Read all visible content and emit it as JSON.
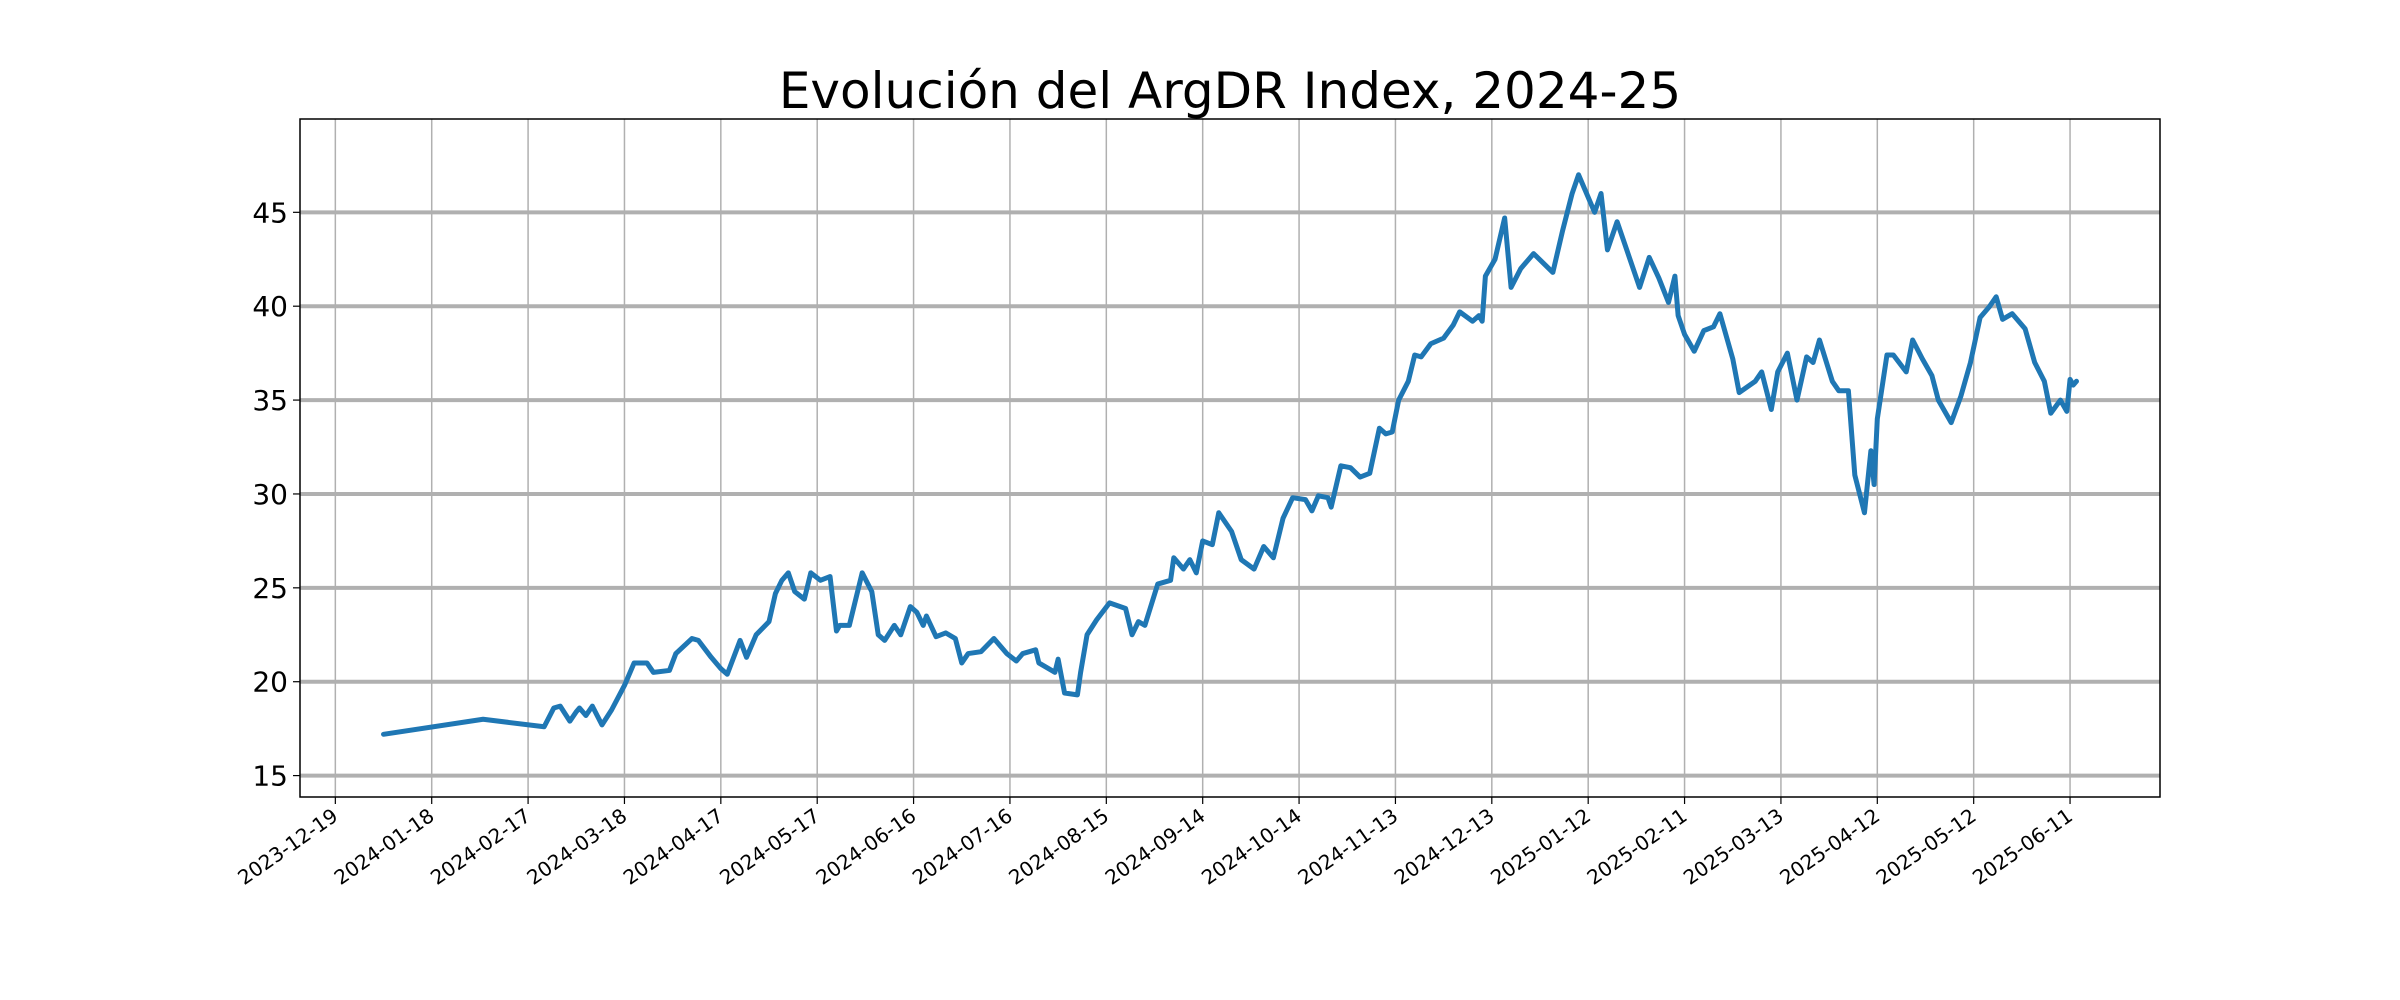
{
  "chart_data": {
    "type": "line",
    "title": "Evolución del ArgDR Index, 2024-25",
    "color": "#1f77b4",
    "grid": true,
    "x": [
      "2024-01-03",
      "2024-02-03",
      "2024-02-22",
      "2024-02-25",
      "2024-02-27",
      "2024-03-01",
      "2024-03-03",
      "2024-03-04",
      "2024-03-06",
      "2024-03-08",
      "2024-03-11",
      "2024-03-14",
      "2024-03-18",
      "2024-03-21",
      "2024-03-25",
      "2024-03-27",
      "2024-04-01",
      "2024-04-03",
      "2024-04-08",
      "2024-04-10",
      "2024-04-14",
      "2024-04-17",
      "2024-04-19",
      "2024-04-23",
      "2024-04-25",
      "2024-04-28",
      "2024-05-02",
      "2024-05-04",
      "2024-05-06",
      "2024-05-08",
      "2024-05-10",
      "2024-05-13",
      "2024-05-15",
      "2024-05-18",
      "2024-05-21",
      "2024-05-23",
      "2024-05-24",
      "2024-05-27",
      "2024-05-31",
      "2024-06-03",
      "2024-06-05",
      "2024-06-07",
      "2024-06-10",
      "2024-06-12",
      "2024-06-15",
      "2024-06-17",
      "2024-06-19",
      "2024-06-20",
      "2024-06-23",
      "2024-06-26",
      "2024-06-29",
      "2024-07-01",
      "2024-07-03",
      "2024-07-07",
      "2024-07-11",
      "2024-07-15",
      "2024-07-18",
      "2024-07-20",
      "2024-07-24",
      "2024-07-25",
      "2024-07-30",
      "2024-07-31",
      "2024-08-02",
      "2024-08-06",
      "2024-08-07",
      "2024-08-09",
      "2024-08-12",
      "2024-08-16",
      "2024-08-21",
      "2024-08-23",
      "2024-08-25",
      "2024-08-27",
      "2024-08-31",
      "2024-09-04",
      "2024-09-05",
      "2024-09-08",
      "2024-09-10",
      "2024-09-12",
      "2024-09-14",
      "2024-09-17",
      "2024-09-19",
      "2024-09-23",
      "2024-09-26",
      "2024-09-30",
      "2024-10-03",
      "2024-10-06",
      "2024-10-09",
      "2024-10-12",
      "2024-10-16",
      "2024-10-18",
      "2024-10-20",
      "2024-10-23",
      "2024-10-24",
      "2024-10-27",
      "2024-10-30",
      "2024-11-02",
      "2024-11-05",
      "2024-11-08",
      "2024-11-10",
      "2024-11-12",
      "2024-11-14",
      "2024-11-17",
      "2024-11-19",
      "2024-11-21",
      "2024-11-24",
      "2024-11-28",
      "2024-12-01",
      "2024-12-03",
      "2024-12-07",
      "2024-12-09",
      "2024-12-10",
      "2024-12-11",
      "2024-12-14",
      "2024-12-17",
      "2024-12-19",
      "2024-12-22",
      "2024-12-26",
      "2025-01-01",
      "2025-01-04",
      "2025-01-07",
      "2025-01-09",
      "2025-01-11",
      "2025-01-14",
      "2025-01-16",
      "2025-01-18",
      "2025-01-21",
      "2025-01-24",
      "2025-01-28",
      "2025-01-31",
      "2025-02-03",
      "2025-02-06",
      "2025-02-08",
      "2025-02-09",
      "2025-02-11",
      "2025-02-14",
      "2025-02-17",
      "2025-02-20",
      "2025-02-22",
      "2025-02-26",
      "2025-02-28",
      "2025-03-05",
      "2025-03-07",
      "2025-03-10",
      "2025-03-12",
      "2025-03-15",
      "2025-03-18",
      "2025-03-21",
      "2025-03-23",
      "2025-03-25",
      "2025-03-29",
      "2025-03-31",
      "2025-04-03",
      "2025-04-05",
      "2025-04-08",
      "2025-04-10",
      "2025-04-11",
      "2025-04-12",
      "2025-04-15",
      "2025-04-17",
      "2025-04-21",
      "2025-04-23",
      "2025-04-26",
      "2025-04-29",
      "2025-05-01",
      "2025-05-05",
      "2025-05-08",
      "2025-05-11",
      "2025-05-14",
      "2025-05-17",
      "2025-05-19",
      "2025-05-21",
      "2025-05-24",
      "2025-05-28",
      "2025-05-31",
      "2025-06-03",
      "2025-06-05",
      "2025-06-08",
      "2025-06-10",
      "2025-06-11",
      "2025-06-12",
      "2025-06-13"
    ],
    "values": [
      17.2,
      18.0,
      17.6,
      18.6,
      18.7,
      17.9,
      18.4,
      18.6,
      18.2,
      18.7,
      17.7,
      18.5,
      19.8,
      21.0,
      21.0,
      20.5,
      20.6,
      21.5,
      22.3,
      22.2,
      21.3,
      20.7,
      20.4,
      22.2,
      21.3,
      22.5,
      23.2,
      24.7,
      25.4,
      25.8,
      24.8,
      24.4,
      25.8,
      25.4,
      25.6,
      22.7,
      23.0,
      23.0,
      25.8,
      24.8,
      22.5,
      22.2,
      23.0,
      22.5,
      24.0,
      23.7,
      23.0,
      23.5,
      22.4,
      22.6,
      22.3,
      21.0,
      21.5,
      21.6,
      22.3,
      21.5,
      21.1,
      21.5,
      21.7,
      21.0,
      20.5,
      21.2,
      19.4,
      19.3,
      20.5,
      22.5,
      23.3,
      24.2,
      23.9,
      22.5,
      23.2,
      23.0,
      25.2,
      25.4,
      26.6,
      26.0,
      26.5,
      25.8,
      27.5,
      27.3,
      29.0,
      28.0,
      26.5,
      26.0,
      27.2,
      26.6,
      28.7,
      29.8,
      29.7,
      29.1,
      29.9,
      29.8,
      29.3,
      31.5,
      31.4,
      30.9,
      31.1,
      33.5,
      33.2,
      33.3,
      35.0,
      36.0,
      37.4,
      37.3,
      38.0,
      38.3,
      39.0,
      39.7,
      39.2,
      39.5,
      39.2,
      41.6,
      42.5,
      44.7,
      41.0,
      42.0,
      42.8,
      41.8,
      44.0,
      46.0,
      47.0,
      46.2,
      45.0,
      46.0,
      43.0,
      44.5,
      43.0,
      41.0,
      42.6,
      41.5,
      40.2,
      41.6,
      39.5,
      38.5,
      37.6,
      38.7,
      38.9,
      39.6,
      37.2,
      35.4,
      36.0,
      36.5,
      34.5,
      36.5,
      37.5,
      35.0,
      37.3,
      37.0,
      38.2,
      36.0,
      35.5,
      35.5,
      31.0,
      29.0,
      32.3,
      30.5,
      34.0,
      37.4,
      37.4,
      36.5,
      38.2,
      37.2,
      36.3,
      35.0,
      33.8,
      35.2,
      37.0,
      39.4,
      40.0,
      40.5,
      39.3,
      39.6,
      38.8,
      37.0,
      36.0,
      34.3,
      35.0,
      34.4,
      36.1,
      35.8,
      36.0
    ],
    "xlim": [
      "2023-12-08",
      "2025-07-09"
    ],
    "xticks": [
      "2023-12-19",
      "2024-01-18",
      "2024-02-17",
      "2024-03-18",
      "2024-04-17",
      "2024-05-17",
      "2024-06-16",
      "2024-07-16",
      "2024-08-15",
      "2024-09-14",
      "2024-10-14",
      "2024-11-13",
      "2024-12-13",
      "2025-01-12",
      "2025-02-11",
      "2025-03-13",
      "2025-04-12",
      "2025-05-12",
      "2025-06-11"
    ],
    "ylim": [
      13.86,
      49.97
    ],
    "yticks": [
      15,
      20,
      25,
      30,
      35,
      40,
      45
    ]
  }
}
